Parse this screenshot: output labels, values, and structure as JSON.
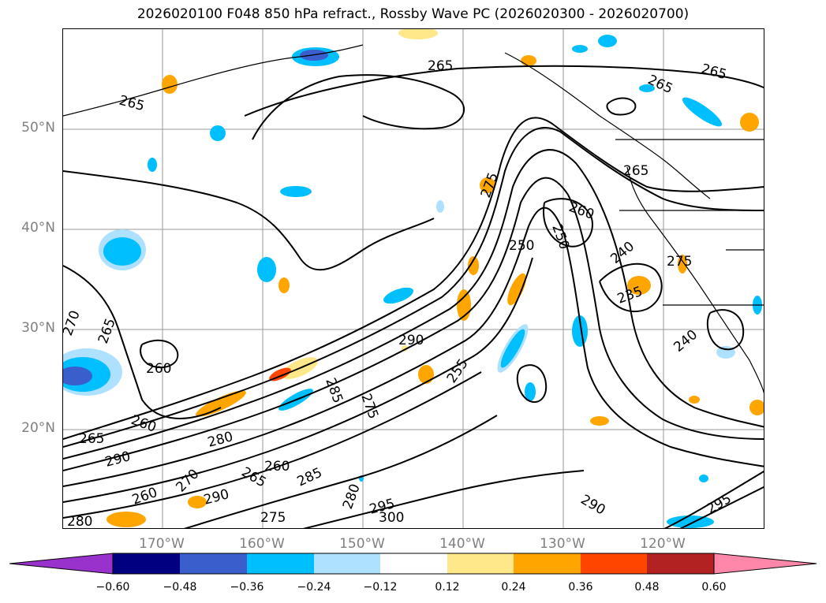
{
  "title": "2026020100 F048 850 hPa refract., Rossby Wave PC (2026020300 - 2026020700)",
  "map": {
    "lat_labels": [
      "50°N",
      "40°N",
      "30°N",
      "20°N"
    ],
    "lon_labels": [
      "170°W",
      "160°W",
      "150°W",
      "140°W",
      "130°W",
      "120°W"
    ],
    "contour_labels": [
      "265",
      "265",
      "265",
      "265",
      "265",
      "270",
      "265",
      "260",
      "260",
      "260",
      "265",
      "290",
      "280",
      "270",
      "265",
      "260",
      "290",
      "285",
      "280",
      "295",
      "300",
      "275",
      "275",
      "285",
      "290",
      "255",
      "250",
      "250",
      "260",
      "240",
      "235",
      "240",
      "280",
      "275",
      "295",
      "290",
      "275"
    ]
  },
  "colorbar": {
    "ticks": [
      "−0.60",
      "−0.48",
      "−0.36",
      "−0.24",
      "−0.12",
      "0.12",
      "0.24",
      "0.36",
      "0.48",
      "0.60"
    ],
    "colors": [
      "#9932cc",
      "#000080",
      "#3a5fcd",
      "#00bfff",
      "#aee1ff",
      "#ffffff",
      "#ffe88a",
      "#ffa500",
      "#ff4500",
      "#b22222",
      "#ff88aa"
    ]
  }
}
